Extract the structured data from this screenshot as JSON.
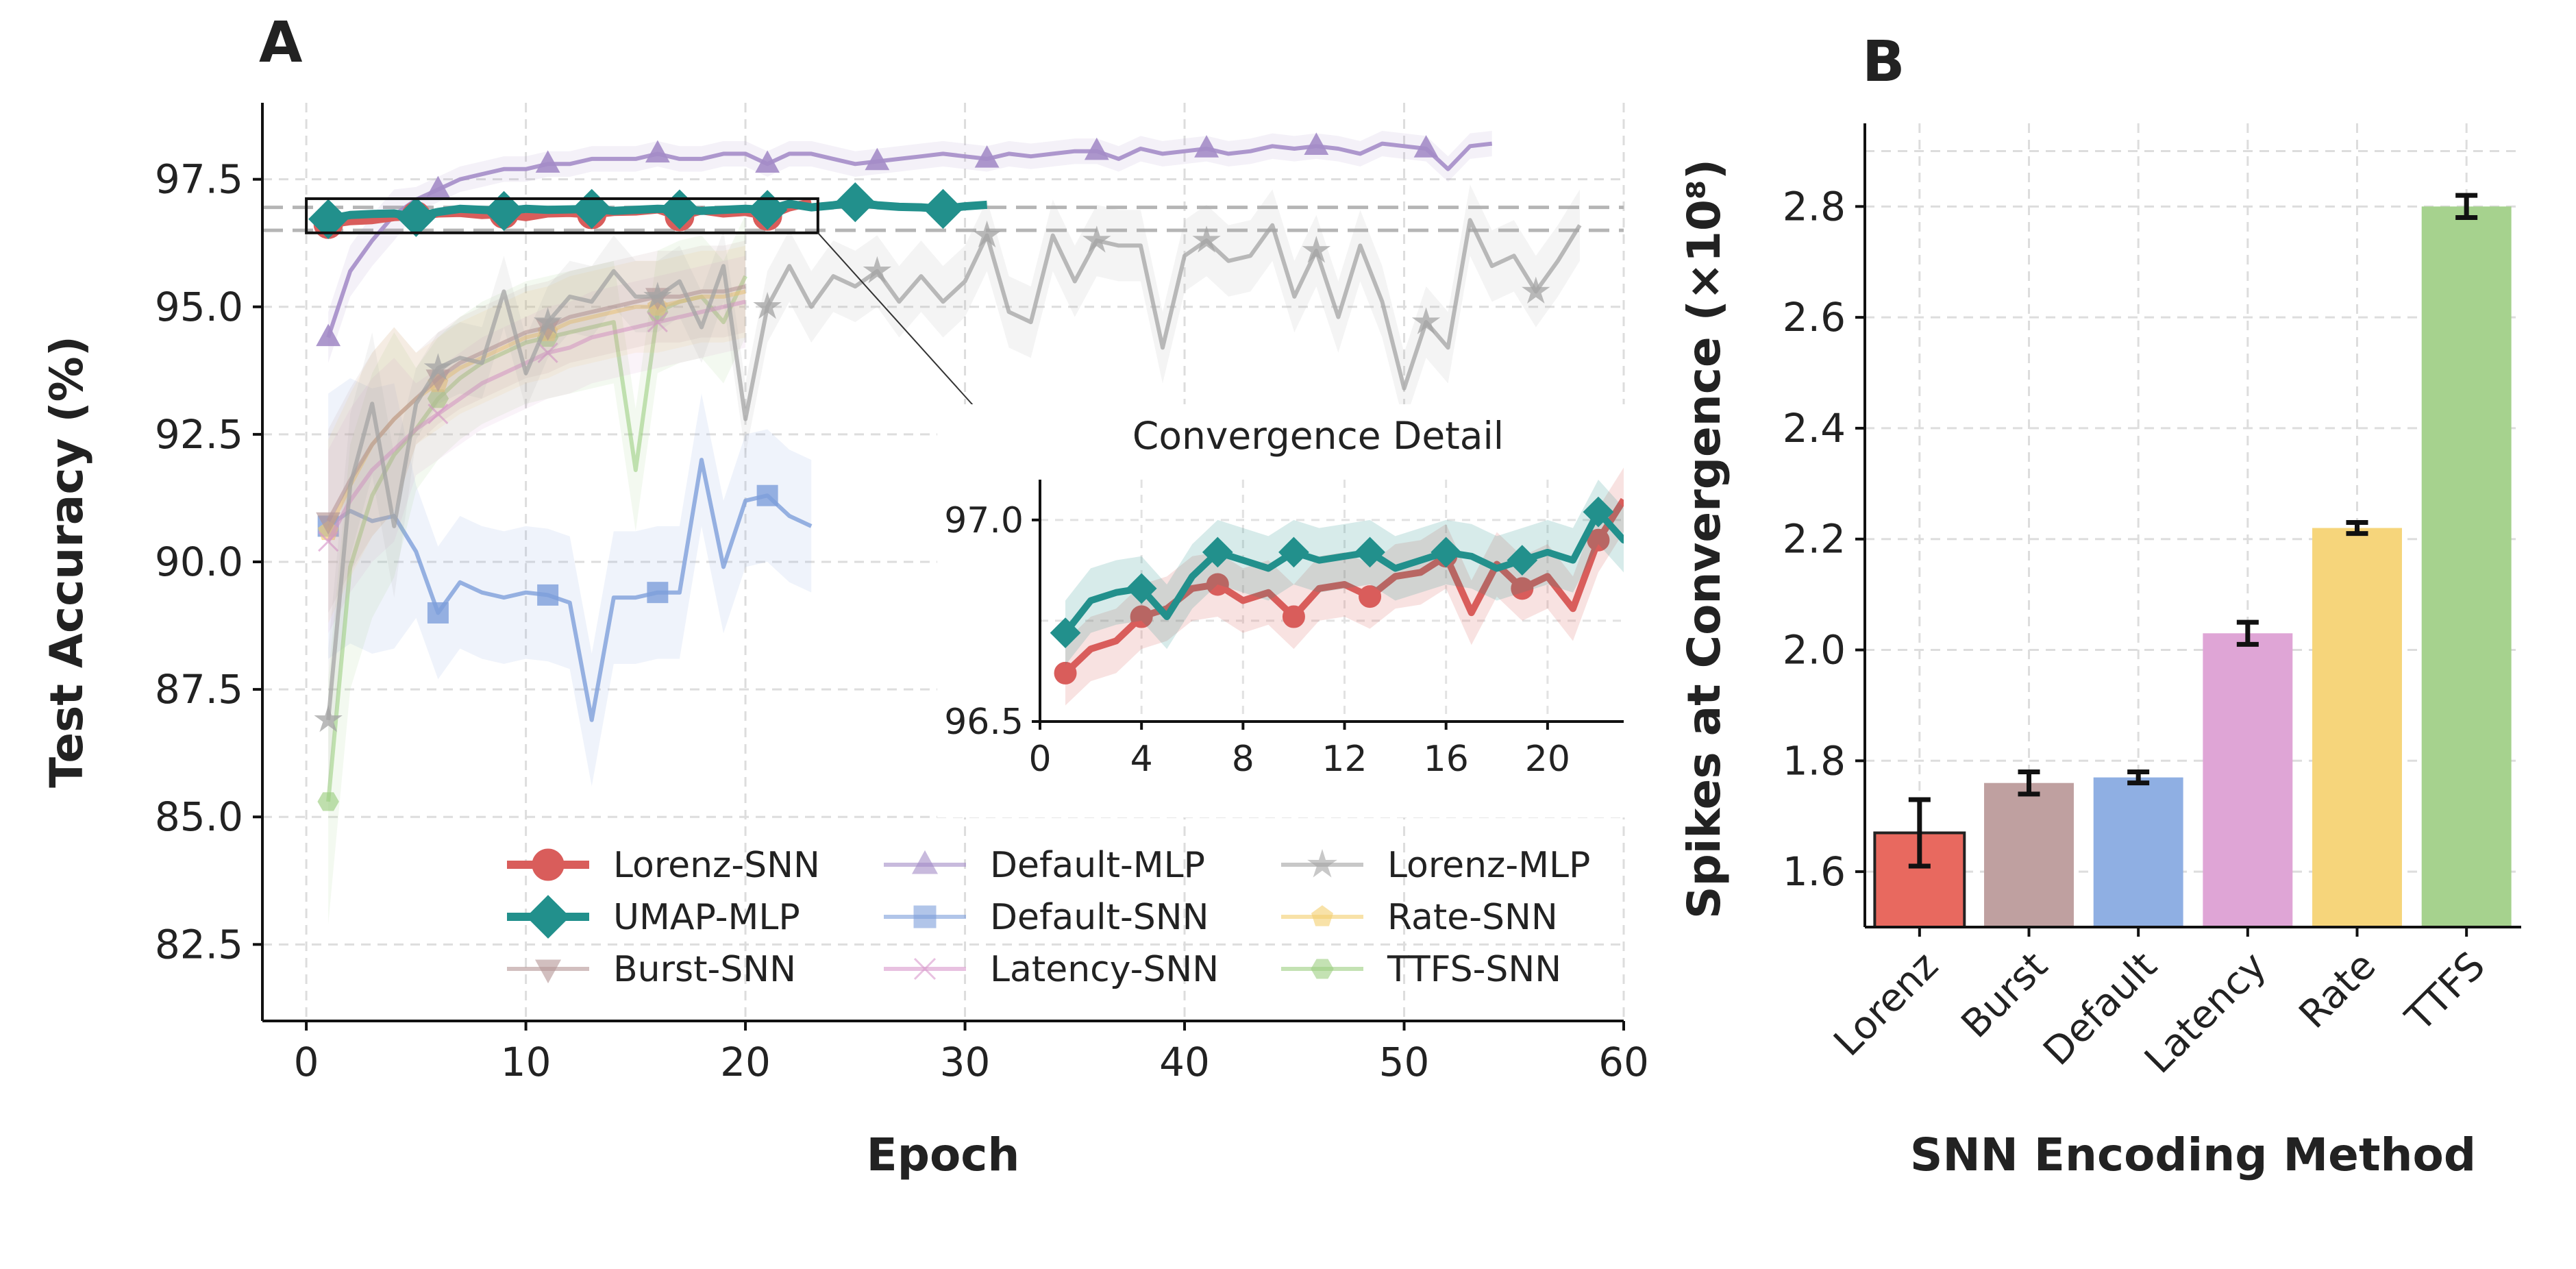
{
  "chart_data": [
    {
      "panel": "A",
      "type": "line",
      "xlabel": "Epoch",
      "ylabel": "Test Accuracy (%)",
      "xlim": [
        -2,
        60
      ],
      "ylim": [
        81,
        99
      ],
      "xticks": [
        0,
        10,
        20,
        30,
        40,
        50,
        60
      ],
      "yticks": [
        82.5,
        85.0,
        87.5,
        90.0,
        92.5,
        95.0,
        97.5
      ],
      "reference_lines": [
        96.5,
        96.95
      ],
      "grid": true,
      "legend_position": "bottom-center",
      "series": [
        {
          "name": "Lorenz-SNN",
          "color": "#d95d5b",
          "marker": "circle",
          "x": [
            1,
            2,
            3,
            4,
            5,
            6,
            7,
            8,
            9,
            10,
            11,
            12,
            13,
            14,
            15,
            16,
            17,
            18,
            19,
            20,
            21,
            22,
            23
          ],
          "y": [
            96.62,
            96.68,
            96.7,
            96.76,
            96.78,
            96.83,
            96.84,
            96.8,
            96.82,
            96.76,
            96.83,
            96.84,
            96.81,
            96.86,
            96.87,
            96.91,
            96.77,
            96.89,
            96.83,
            96.86,
            96.78,
            96.95,
            97.05
          ]
        },
        {
          "name": "UMAP-MLP",
          "color": "#22908c",
          "marker": "diamond",
          "x": [
            1,
            2,
            3,
            4,
            5,
            6,
            7,
            8,
            9,
            10,
            11,
            12,
            13,
            14,
            15,
            16,
            17,
            18,
            19,
            20,
            21,
            22,
            23,
            24,
            25,
            26,
            27,
            28,
            29,
            30,
            31
          ],
          "y": [
            96.72,
            96.8,
            96.82,
            96.83,
            96.76,
            96.86,
            96.92,
            96.9,
            96.88,
            96.92,
            96.9,
            96.91,
            96.92,
            96.88,
            96.9,
            96.92,
            96.91,
            96.88,
            96.9,
            96.92,
            96.9,
            97.02,
            96.95,
            96.99,
            97.05,
            96.99,
            96.96,
            96.95,
            96.92,
            96.97,
            97.0
          ]
        },
        {
          "name": "Burst-SNN",
          "color": "#b59696",
          "marker": "triangle-down",
          "x": [
            1,
            2,
            3,
            4,
            5,
            6,
            7,
            8,
            9,
            10,
            11,
            12,
            13,
            14,
            15,
            16,
            17,
            18,
            19,
            20
          ],
          "y": [
            90.8,
            91.6,
            92.3,
            92.8,
            93.2,
            93.6,
            93.9,
            94.1,
            94.3,
            94.5,
            94.6,
            94.8,
            94.9,
            95.0,
            95.1,
            95.2,
            95.2,
            95.3,
            95.3,
            95.4
          ]
        },
        {
          "name": "Default-MLP",
          "color": "#a58dc8",
          "marker": "triangle-up",
          "x": [
            1,
            2,
            3,
            4,
            5,
            6,
            7,
            8,
            9,
            10,
            11,
            12,
            13,
            14,
            15,
            16,
            17,
            18,
            19,
            20,
            21,
            22,
            23,
            24,
            25,
            26,
            27,
            28,
            29,
            30,
            31,
            32,
            33,
            34,
            35,
            36,
            37,
            38,
            39,
            40,
            41,
            42,
            43,
            44,
            45,
            46,
            47,
            48,
            49,
            50,
            51,
            52,
            53,
            54
          ],
          "y": [
            94.4,
            95.7,
            96.3,
            96.8,
            97.1,
            97.3,
            97.5,
            97.6,
            97.7,
            97.7,
            97.8,
            97.8,
            97.9,
            97.9,
            97.9,
            98.0,
            97.9,
            97.9,
            98.0,
            98.0,
            97.8,
            98.0,
            98.0,
            97.9,
            97.8,
            97.85,
            97.9,
            97.95,
            98.0,
            97.95,
            97.9,
            98.0,
            97.95,
            98.0,
            98.05,
            98.05,
            97.9,
            98.1,
            98.0,
            98.05,
            98.1,
            98.0,
            98.05,
            98.15,
            98.1,
            98.15,
            98.1,
            98.0,
            98.2,
            98.15,
            98.1,
            97.7,
            98.15,
            98.2
          ]
        },
        {
          "name": "Default-SNN",
          "color": "#7e9fdb",
          "marker": "square",
          "x": [
            1,
            2,
            3,
            4,
            5,
            6,
            7,
            8,
            9,
            10,
            11,
            12,
            13,
            14,
            15,
            16,
            17,
            18,
            19,
            20,
            21,
            22,
            23
          ],
          "y": [
            90.7,
            91.0,
            90.8,
            90.9,
            90.2,
            89.0,
            89.6,
            89.4,
            89.3,
            89.4,
            89.35,
            89.2,
            86.9,
            89.3,
            89.3,
            89.4,
            89.4,
            92.0,
            89.9,
            91.2,
            91.3,
            90.9,
            90.7
          ]
        },
        {
          "name": "Latency-SNN",
          "color": "#d999cc",
          "marker": "x",
          "x": [
            1,
            2,
            3,
            4,
            5,
            6,
            7,
            8,
            9,
            10,
            11,
            12,
            13,
            14,
            15,
            16,
            17,
            18,
            19,
            20
          ],
          "y": [
            90.4,
            91.2,
            91.8,
            92.2,
            92.6,
            92.9,
            93.2,
            93.5,
            93.7,
            93.9,
            94.1,
            94.2,
            94.4,
            94.5,
            94.6,
            94.7,
            94.8,
            94.9,
            95.0,
            95.1
          ]
        },
        {
          "name": "Lorenz-MLP",
          "color": "#a4a4a4",
          "marker": "star",
          "x": [
            1,
            2,
            3,
            4,
            5,
            6,
            7,
            8,
            9,
            10,
            11,
            12,
            13,
            14,
            15,
            16,
            17,
            18,
            19,
            20,
            21,
            22,
            23,
            24,
            25,
            26,
            27,
            28,
            29,
            30,
            31,
            32,
            33,
            34,
            35,
            36,
            37,
            38,
            39,
            40,
            41,
            42,
            43,
            44,
            45,
            46,
            47,
            48,
            49,
            50,
            51,
            52,
            53,
            54,
            55,
            56,
            57,
            58
          ],
          "y": [
            86.9,
            91.5,
            93.1,
            90.7,
            93.1,
            93.8,
            94.0,
            93.9,
            95.3,
            93.7,
            94.7,
            95.2,
            95.1,
            95.7,
            95.2,
            95.2,
            95.5,
            94.6,
            95.8,
            92.8,
            95.0,
            95.8,
            95.0,
            95.6,
            95.4,
            95.7,
            95.1,
            95.6,
            95.1,
            95.5,
            96.4,
            94.9,
            94.7,
            96.4,
            95.5,
            96.3,
            96.2,
            96.2,
            94.2,
            96.0,
            96.3,
            95.9,
            96.0,
            96.6,
            95.2,
            96.1,
            94.8,
            96.2,
            95.1,
            93.4,
            94.7,
            94.2,
            96.7,
            95.8,
            96.0,
            95.3,
            95.9,
            96.6
          ]
        },
        {
          "name": "Rate-SNN",
          "color": "#f4cf70",
          "marker": "pentagon",
          "x": [
            1,
            2,
            3,
            4,
            5,
            6,
            7,
            8,
            9,
            10,
            11,
            12,
            13,
            14,
            15,
            16,
            17,
            18,
            19,
            20
          ],
          "y": [
            90.6,
            91.5,
            92.3,
            92.8,
            93.2,
            93.5,
            93.8,
            94.0,
            94.2,
            94.4,
            94.5,
            94.7,
            94.8,
            94.9,
            95.0,
            95.0,
            95.1,
            95.2,
            95.2,
            95.3
          ]
        },
        {
          "name": "TTFS-SNN",
          "color": "#9dcf82",
          "marker": "hexagon",
          "x": [
            1,
            2,
            3,
            4,
            5,
            6,
            7,
            8,
            9,
            10,
            11,
            12,
            13,
            14,
            15,
            16,
            17,
            18,
            19,
            20
          ],
          "y": [
            85.3,
            89.9,
            91.3,
            92.1,
            92.6,
            93.2,
            93.6,
            93.9,
            94.1,
            94.3,
            94.4,
            94.5,
            94.6,
            94.7,
            91.8,
            94.9,
            95.1,
            95.2,
            94.7,
            95.6
          ]
        }
      ],
      "inset": {
        "title": "Convergence Detail",
        "xlim": [
          0,
          23
        ],
        "ylim": [
          96.5,
          97.1
        ],
        "xticks": [
          0,
          4,
          8,
          12,
          16,
          20
        ],
        "yticks": [
          96.5,
          97.0
        ],
        "series_shown": [
          "Lorenz-SNN",
          "UMAP-MLP"
        ]
      }
    },
    {
      "panel": "B",
      "type": "bar",
      "xlabel": "SNN Encoding Method",
      "ylabel": "Spikes at Convergence (×10⁸)",
      "categories": [
        "Lorenz",
        "Burst",
        "Default",
        "Latency",
        "Rate",
        "TTFS"
      ],
      "values": [
        1.67,
        1.76,
        1.77,
        2.03,
        2.22,
        2.8
      ],
      "errors": [
        0.06,
        0.02,
        0.01,
        0.02,
        0.01,
        0.02
      ],
      "colors": [
        "#e8695f",
        "#bfa0a0",
        "#8fafe3",
        "#dfa5d6",
        "#f6d57b",
        "#a6d28e"
      ],
      "ylim": [
        1.5,
        2.95
      ],
      "yticks": [
        1.6,
        1.8,
        2.0,
        2.2,
        2.4,
        2.6,
        2.8
      ],
      "grid": true
    }
  ],
  "panel_labels": {
    "a": "A",
    "b": "B"
  }
}
